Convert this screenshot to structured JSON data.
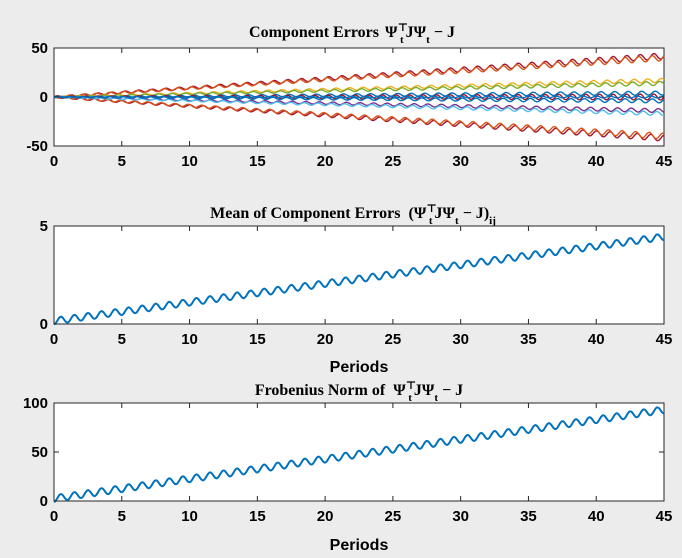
{
  "chart_data": [
    {
      "type": "line",
      "title": "Component Errors",
      "title_math": "Ψ_t^⊤ J Ψ_t − J",
      "xlabel": "",
      "ylabel": "",
      "xlim": [
        0,
        45
      ],
      "ylim": [
        -50,
        50
      ],
      "xticks": [
        0,
        5,
        10,
        15,
        20,
        25,
        30,
        35,
        40,
        45
      ],
      "yticks": [
        -50,
        0,
        50
      ],
      "grid": false,
      "x_range_of_series": [
        0,
        45
      ],
      "series": [
        {
          "color": "#a2142f",
          "values": {
            "x": [
              0,
              45
            ],
            "y": [
              0,
              42
            ]
          },
          "oscillation": 3
        },
        {
          "color": "#d95319",
          "values": {
            "x": [
              0,
              45
            ],
            "y": [
              0,
              40
            ]
          },
          "oscillation": 3
        },
        {
          "color": "#a2142f",
          "values": {
            "x": [
              0,
              45
            ],
            "y": [
              0,
              -42
            ]
          },
          "oscillation": 3
        },
        {
          "color": "#d95319",
          "values": {
            "x": [
              0,
              45
            ],
            "y": [
              0,
              -40
            ]
          },
          "oscillation": 3
        },
        {
          "color": "#edb120",
          "values": {
            "x": [
              0,
              45
            ],
            "y": [
              0,
              17
            ]
          },
          "oscillation": 2
        },
        {
          "color": "#77ac30",
          "values": {
            "x": [
              0,
              45
            ],
            "y": [
              0,
              14
            ]
          },
          "oscillation": 2
        },
        {
          "color": "#7e2f8e",
          "values": {
            "x": [
              0,
              45
            ],
            "y": [
              0,
              -14
            ]
          },
          "oscillation": 2
        },
        {
          "color": "#4dbeee",
          "values": {
            "x": [
              0,
              45
            ],
            "y": [
              0,
              -17
            ]
          },
          "oscillation": 2
        },
        {
          "color": "#0072bd",
          "values": {
            "x": [
              0,
              45
            ],
            "y": [
              0,
              4
            ]
          },
          "oscillation": 2
        },
        {
          "color": "#a2142f",
          "values": {
            "x": [
              0,
              45
            ],
            "y": [
              0,
              0
            ]
          },
          "oscillation": 3
        },
        {
          "color": "#0072bd",
          "values": {
            "x": [
              0,
              45
            ],
            "y": [
              0,
              -4
            ]
          },
          "oscillation": 2
        },
        {
          "color": "#0072bd",
          "values": {
            "x": [
              0,
              45
            ],
            "y": [
              0,
              0
            ]
          },
          "oscillation": 1
        }
      ]
    },
    {
      "type": "line",
      "title": "Mean of Component Errors",
      "title_math": "(Ψ_t^⊤ J Ψ_t − J)_ij",
      "xlabel": "Periods",
      "ylabel": "",
      "xlim": [
        0,
        45
      ],
      "ylim": [
        0,
        5
      ],
      "xticks": [
        0,
        5,
        10,
        15,
        20,
        25,
        30,
        35,
        40,
        45
      ],
      "yticks": [
        0,
        5
      ],
      "grid": false,
      "series": [
        {
          "color": "#0072bd",
          "start": 0.15,
          "end": 4.45,
          "amplitude": 0.17,
          "period": 1
        }
      ]
    },
    {
      "type": "line",
      "title": "Frobenius Norm of",
      "title_math": "Ψ_t^⊤ J Ψ_t − J",
      "xlabel": "Periods",
      "ylabel": "",
      "xlim": [
        0,
        45
      ],
      "ylim": [
        0,
        100
      ],
      "xticks": [
        0,
        5,
        10,
        15,
        20,
        25,
        30,
        35,
        40,
        45
      ],
      "yticks": [
        0,
        50,
        100
      ],
      "grid": false,
      "series": [
        {
          "color": "#0072bd",
          "start": 2.5,
          "end": 93,
          "amplitude": 3.5,
          "period": 1
        }
      ]
    }
  ],
  "titles": {
    "t1_text": "Component Errors",
    "t2_text": "Mean of Component Errors",
    "t3_text": "Frobenius Norm of",
    "sub_t": "t",
    "sub_ij": "ij",
    "sup_top": "⊤",
    "psi": "Ψ",
    "j_char": "J",
    "minus_j": " − J",
    "open_paren": "(",
    "close_paren": ")"
  },
  "ticks": {
    "x": [
      "0",
      "5",
      "10",
      "15",
      "20",
      "25",
      "30",
      "35",
      "40",
      "45"
    ],
    "y1": [
      "50",
      "0",
      "-50"
    ],
    "y2": [
      "5",
      "0"
    ],
    "y3": [
      "100",
      "50",
      "0"
    ]
  },
  "xlabels": {
    "p2": "Periods",
    "p3": "Periods"
  }
}
